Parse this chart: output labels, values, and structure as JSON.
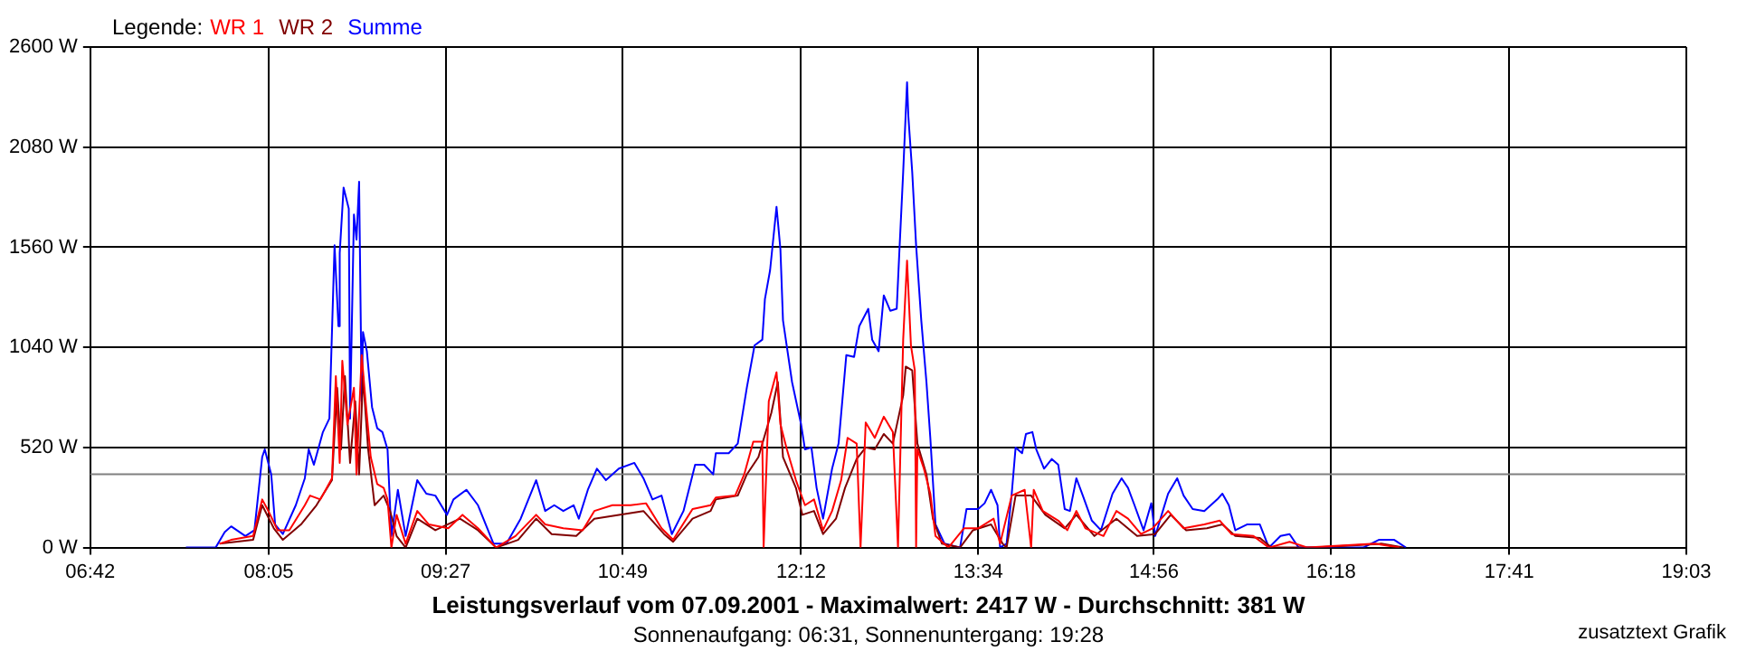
{
  "chart_data": {
    "type": "line",
    "title": "Leistungsverlauf vom 07.09.2001 - Maximalwert: 2417 W - Durchschnitt: 381 W",
    "subtitle": "Sonnenaufgang: 06:31, Sonnenuntergang: 19:28",
    "legend_title": "Legende:",
    "annotations": [
      "zusatztext Grafik"
    ],
    "xlim": [
      6.7,
      19.05
    ],
    "xticks": [
      {
        "value": 6.7,
        "label": "06:42"
      },
      {
        "value": 8.08,
        "label": "08:05"
      },
      {
        "value": 9.45,
        "label": "09:27"
      },
      {
        "value": 10.82,
        "label": "10:49"
      },
      {
        "value": 12.2,
        "label": "12:12"
      },
      {
        "value": 13.57,
        "label": "13:34"
      },
      {
        "value": 14.93,
        "label": "14:56"
      },
      {
        "value": 16.3,
        "label": "16:18"
      },
      {
        "value": 17.68,
        "label": "17:41"
      },
      {
        "value": 19.05,
        "label": "19:03"
      }
    ],
    "ylim": [
      0,
      2600
    ],
    "yticks": [
      {
        "value": 0,
        "label": "0 W"
      },
      {
        "value": 520,
        "label": "520 W"
      },
      {
        "value": 1040,
        "label": "1040 W"
      },
      {
        "value": 1560,
        "label": "1560 W"
      },
      {
        "value": 2080,
        "label": "2080 W"
      },
      {
        "value": 2600,
        "label": "2600 W"
      }
    ],
    "grid": true,
    "legend": "top left",
    "marker": "none",
    "line_style": "solid",
    "ref_lines": [
      {
        "axis": "y",
        "value": 381,
        "color": "#808080"
      }
    ],
    "series": [
      {
        "name": "WR 1",
        "color": "#ff0000",
        "x": [
          7.7,
          7.79,
          7.96,
          8.03,
          8.07,
          8.15,
          8.24,
          8.36,
          8.4,
          8.48,
          8.57,
          8.6,
          8.63,
          8.65,
          8.69,
          8.74,
          8.76,
          8.8,
          8.83,
          8.87,
          8.92,
          8.97,
          9.0,
          9.03,
          9.07,
          9.14,
          9.23,
          9.32,
          9.47,
          9.58,
          9.7,
          9.84,
          9.99,
          10.15,
          10.22,
          10.36,
          10.51,
          10.6,
          10.74,
          10.88,
          11.0,
          11.12,
          11.21,
          11.36,
          11.5,
          11.54,
          11.69,
          11.76,
          11.83,
          11.9,
          11.91,
          11.95,
          12.01,
          12.04,
          12.09,
          12.16,
          12.23,
          12.3,
          12.37,
          12.44,
          12.51,
          12.56,
          12.63,
          12.66,
          12.7,
          12.77,
          12.84,
          12.91,
          12.95,
          12.99,
          13.02,
          13.05,
          13.08,
          13.09,
          13.1,
          13.15,
          13.2,
          13.24,
          13.34,
          13.46,
          13.57,
          13.69,
          13.74,
          13.83,
          13.93,
          13.98,
          14.0,
          14.07,
          14.19,
          14.26,
          14.33,
          14.4,
          14.54,
          14.64,
          14.73,
          14.83,
          14.92,
          15.04,
          15.16,
          15.32,
          15.44,
          15.53,
          15.7,
          15.82,
          15.98,
          16.12,
          16.64,
          16.83
        ],
        "values": [
          20,
          40,
          60,
          250,
          200,
          90,
          90,
          220,
          270,
          250,
          360,
          890,
          440,
          970,
          640,
          830,
          380,
          1000,
          760,
          470,
          330,
          310,
          250,
          0,
          170,
          20,
          190,
          120,
          100,
          170,
          100,
          0,
          60,
          170,
          120,
          100,
          90,
          190,
          220,
          220,
          230,
          100,
          40,
          200,
          220,
          260,
          270,
          380,
          550,
          550,
          0,
          760,
          910,
          640,
          510,
          350,
          220,
          250,
          90,
          190,
          350,
          570,
          540,
          0,
          650,
          570,
          680,
          600,
          0,
          1080,
          1490,
          1050,
          920,
          0,
          510,
          410,
          280,
          60,
          0,
          100,
          100,
          150,
          20,
          270,
          300,
          0,
          300,
          190,
          140,
          90,
          190,
          100,
          60,
          190,
          150,
          70,
          100,
          190,
          100,
          120,
          140,
          70,
          60,
          0,
          30,
          0,
          20,
          0
        ]
      },
      {
        "name": "WR 2",
        "color": "#800000",
        "x": [
          7.7,
          7.96,
          8.03,
          8.12,
          8.19,
          8.33,
          8.45,
          8.57,
          8.61,
          8.64,
          8.67,
          8.71,
          8.75,
          8.78,
          8.81,
          8.85,
          8.9,
          8.97,
          9.02,
          9.07,
          9.14,
          9.23,
          9.37,
          9.56,
          9.7,
          9.84,
          10.01,
          10.15,
          10.27,
          10.46,
          10.6,
          10.79,
          10.98,
          11.14,
          11.21,
          11.36,
          11.5,
          11.54,
          11.71,
          11.78,
          11.87,
          11.97,
          12.02,
          12.06,
          12.16,
          12.21,
          12.3,
          12.37,
          12.47,
          12.54,
          12.63,
          12.7,
          12.77,
          12.84,
          12.91,
          12.99,
          13.01,
          13.06,
          13.1,
          13.17,
          13.22,
          13.29,
          13.43,
          13.53,
          13.67,
          13.76,
          13.79,
          13.86,
          13.98,
          14.09,
          14.24,
          14.33,
          14.47,
          14.64,
          14.8,
          14.94,
          15.06,
          15.18,
          15.34,
          15.46,
          15.56,
          15.75,
          15.84,
          16.03,
          16.17,
          16.69,
          16.86
        ],
        "values": [
          20,
          40,
          220,
          100,
          40,
          120,
          220,
          350,
          830,
          510,
          890,
          440,
          760,
          380,
          890,
          510,
          220,
          270,
          190,
          60,
          0,
          150,
          90,
          150,
          90,
          0,
          40,
          150,
          70,
          60,
          150,
          170,
          190,
          70,
          30,
          150,
          190,
          250,
          270,
          380,
          470,
          700,
          860,
          470,
          310,
          170,
          190,
          70,
          150,
          310,
          460,
          520,
          510,
          590,
          540,
          790,
          940,
          920,
          540,
          380,
          150,
          20,
          0,
          90,
          120,
          20,
          0,
          270,
          270,
          170,
          100,
          170,
          60,
          150,
          60,
          70,
          170,
          90,
          100,
          120,
          60,
          50,
          0,
          0,
          0,
          20,
          0
        ]
      },
      {
        "name": "Summe",
        "color": "#0000ff",
        "x": [
          7.44,
          7.67,
          7.74,
          7.79,
          7.9,
          7.97,
          8.03,
          8.05,
          8.1,
          8.13,
          8.19,
          8.29,
          8.36,
          8.39,
          8.43,
          8.5,
          8.55,
          8.59,
          8.62,
          8.63,
          8.66,
          8.7,
          8.71,
          8.74,
          8.76,
          8.78,
          8.8,
          8.81,
          8.84,
          8.88,
          8.92,
          8.96,
          9.0,
          9.03,
          9.08,
          9.14,
          9.23,
          9.3,
          9.37,
          9.46,
          9.51,
          9.61,
          9.7,
          9.82,
          9.92,
          10.03,
          10.15,
          10.22,
          10.29,
          10.36,
          10.44,
          10.48,
          10.55,
          10.62,
          10.69,
          10.79,
          10.91,
          10.98,
          11.05,
          11.12,
          11.2,
          11.29,
          11.38,
          11.45,
          11.52,
          11.54,
          11.64,
          11.71,
          11.78,
          11.84,
          11.9,
          11.92,
          11.96,
          12.01,
          12.04,
          12.06,
          12.13,
          12.2,
          12.23,
          12.28,
          12.32,
          12.37,
          12.44,
          12.49,
          12.55,
          12.61,
          12.65,
          12.72,
          12.75,
          12.8,
          12.84,
          12.89,
          12.94,
          12.96,
          12.99,
          13.02,
          13.03,
          13.06,
          13.09,
          13.13,
          13.17,
          13.2,
          13.24,
          13.31,
          13.43,
          13.48,
          13.57,
          13.62,
          13.67,
          13.72,
          13.74,
          13.79,
          13.83,
          13.86,
          13.91,
          13.94,
          13.99,
          14.02,
          14.08,
          14.14,
          14.19,
          14.24,
          14.28,
          14.33,
          14.38,
          14.45,
          14.52,
          14.61,
          14.68,
          14.73,
          14.78,
          14.85,
          14.91,
          14.94,
          14.99,
          15.04,
          15.11,
          15.16,
          15.23,
          15.32,
          15.42,
          15.46,
          15.51,
          15.56,
          15.65,
          15.75,
          15.82,
          15.91,
          15.98,
          16.05,
          16.17,
          16.36,
          16.55,
          16.67,
          16.79,
          16.88
        ],
        "values": [
          0,
          0,
          80,
          110,
          60,
          90,
          470,
          510,
          380,
          120,
          70,
          220,
          360,
          510,
          430,
          600,
          670,
          1570,
          1150,
          1530,
          1870,
          1760,
          670,
          1730,
          1600,
          1900,
          760,
          1120,
          1020,
          730,
          620,
          600,
          510,
          60,
          300,
          60,
          350,
          280,
          270,
          170,
          250,
          300,
          220,
          20,
          20,
          150,
          350,
          190,
          220,
          190,
          220,
          150,
          300,
          410,
          350,
          410,
          440,
          360,
          250,
          270,
          70,
          190,
          430,
          430,
          380,
          490,
          490,
          540,
          830,
          1050,
          1080,
          1290,
          1440,
          1770,
          1550,
          1180,
          860,
          640,
          510,
          520,
          310,
          150,
          410,
          540,
          1000,
          990,
          1150,
          1240,
          1080,
          1020,
          1310,
          1230,
          1240,
          1530,
          1950,
          2417,
          2240,
          1950,
          1570,
          1180,
          860,
          570,
          120,
          20,
          0,
          200,
          200,
          230,
          300,
          220,
          0,
          20,
          280,
          520,
          490,
          590,
          600,
          510,
          410,
          460,
          430,
          200,
          190,
          360,
          270,
          140,
          90,
          280,
          360,
          310,
          220,
          90,
          230,
          60,
          170,
          280,
          360,
          270,
          200,
          190,
          250,
          280,
          220,
          90,
          120,
          120,
          0,
          60,
          70,
          0,
          0,
          0,
          0,
          40,
          40,
          0
        ]
      }
    ]
  }
}
